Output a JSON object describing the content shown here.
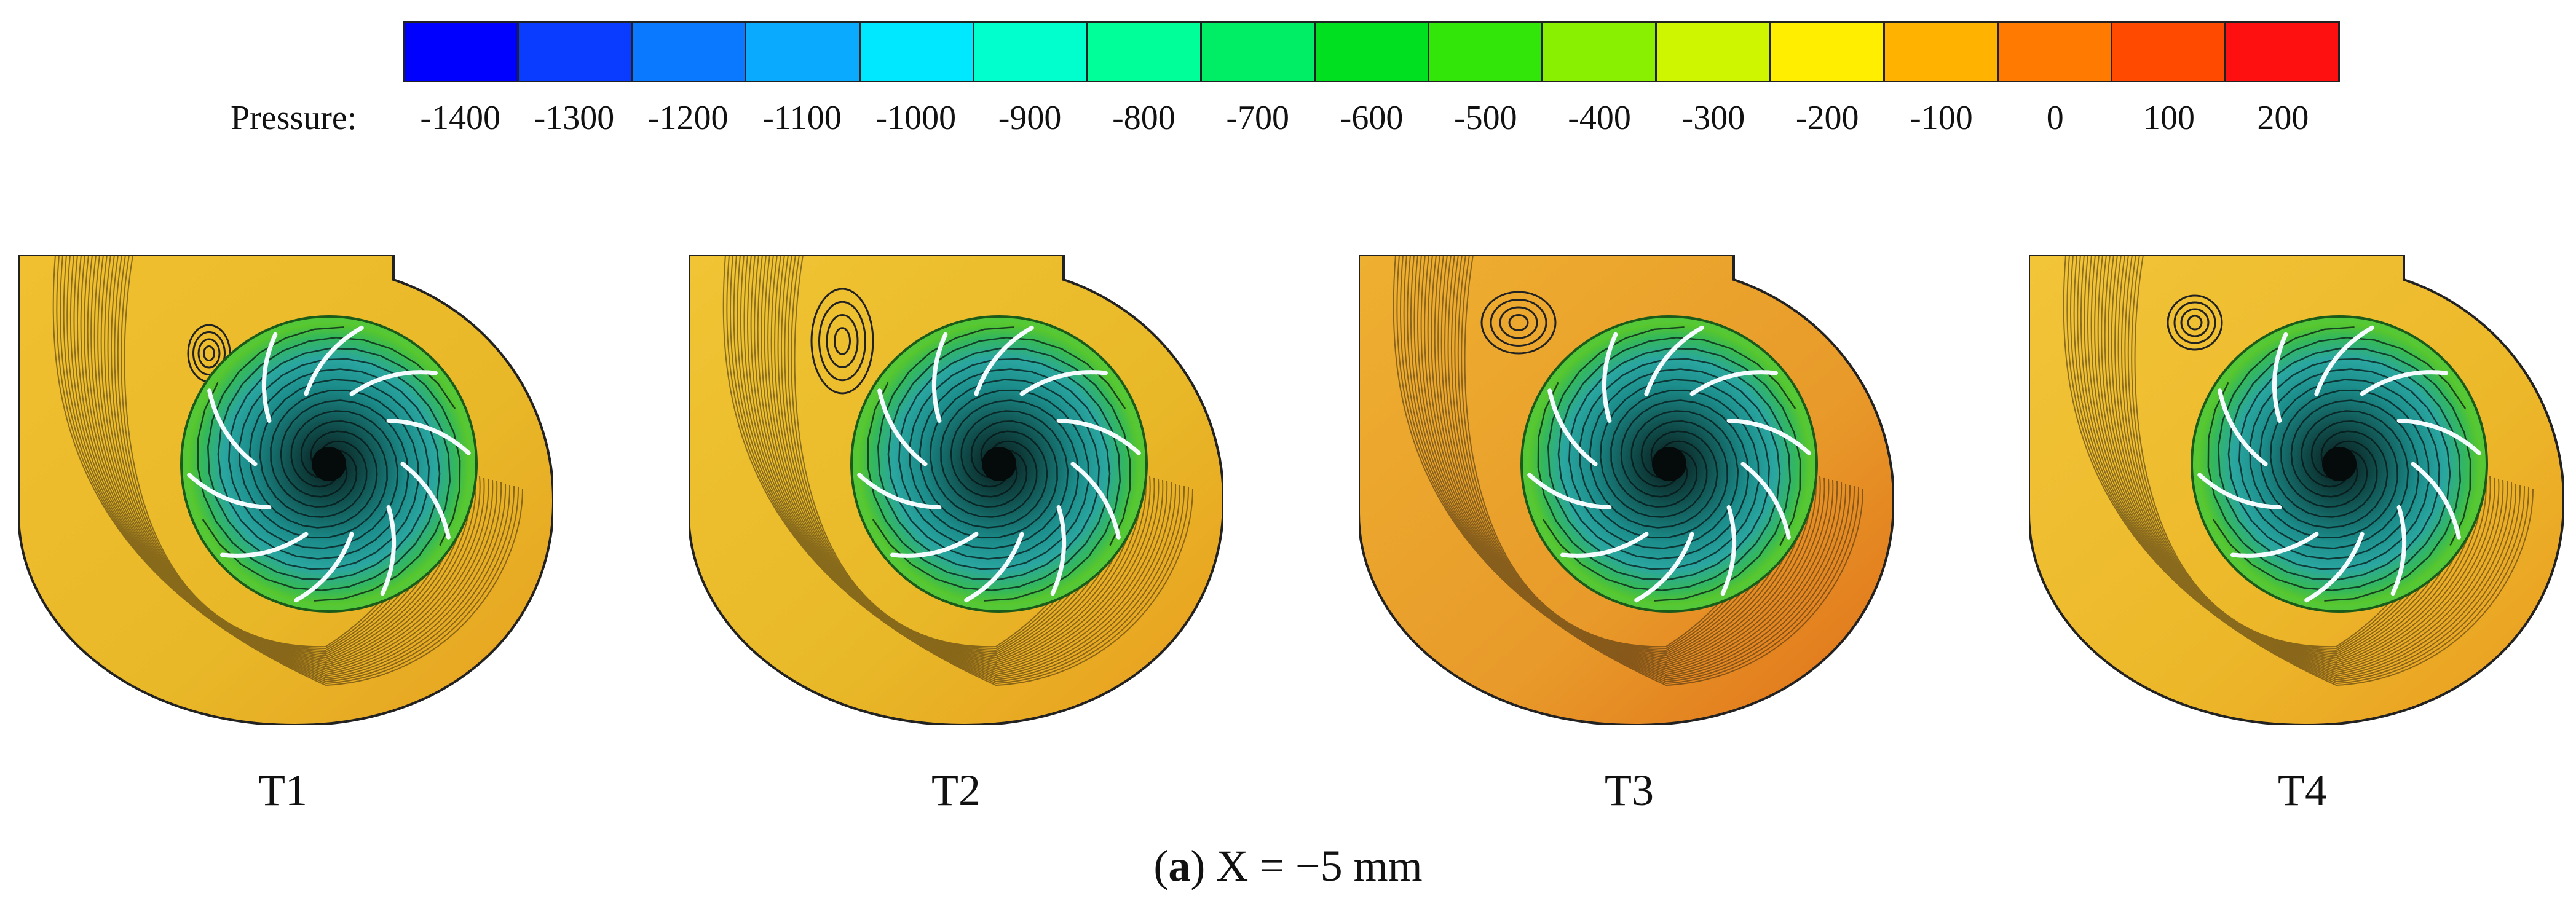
{
  "legend": {
    "label": "Pressure:",
    "ticks": [
      "-1400",
      "-1300",
      "-1200",
      "-1100",
      "-1000",
      "-900",
      "-800",
      "-700",
      "-600",
      "-500",
      "-400",
      "-300",
      "-200",
      "-100",
      "0",
      "100",
      "200"
    ],
    "colors": [
      "#0000ff",
      "#0a3cff",
      "#0a78ff",
      "#0aaaff",
      "#00e8ff",
      "#00ffcc",
      "#00ff99",
      "#00ee66",
      "#00e020",
      "#33e60a",
      "#88f000",
      "#cdf600",
      "#ffee00",
      "#ffb300",
      "#ff7a00",
      "#ff4a00",
      "#ff1010"
    ]
  },
  "panels": [
    {
      "label": "T1"
    },
    {
      "label": "T2"
    },
    {
      "label": "T3"
    },
    {
      "label": "T4"
    }
  ],
  "caption": {
    "letter": "a",
    "text": " X = −5 mm"
  }
}
